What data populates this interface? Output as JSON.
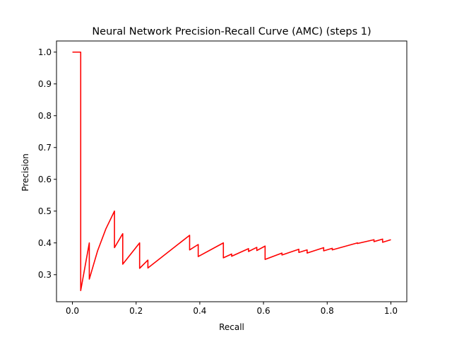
{
  "chart_data": {
    "type": "line",
    "title": "Neural Network Precision-Recall Curve (AMC) (steps 1)",
    "xlabel": "Recall",
    "ylabel": "Precision",
    "xlim": [
      -0.05,
      1.05
    ],
    "ylim": [
      0.215,
      1.035
    ],
    "xticks": [
      0.0,
      0.2,
      0.4,
      0.6,
      0.8,
      1.0
    ],
    "xtick_labels": [
      "0.0",
      "0.2",
      "0.4",
      "0.6",
      "0.8",
      "1.0"
    ],
    "yticks": [
      0.3,
      0.4,
      0.5,
      0.6,
      0.7,
      0.8,
      0.9,
      1.0
    ],
    "ytick_labels": [
      "0.3",
      "0.4",
      "0.5",
      "0.6",
      "0.7",
      "0.8",
      "0.9",
      "1.0"
    ],
    "grid": false,
    "series": [
      {
        "color": "#ff0000",
        "x": [
          0.0,
          0.026,
          0.026,
          0.026,
          0.053,
          0.053,
          0.079,
          0.105,
          0.132,
          0.132,
          0.158,
          0.158,
          0.211,
          0.211,
          0.237,
          0.237,
          0.368,
          0.368,
          0.395,
          0.395,
          0.474,
          0.474,
          0.5,
          0.5,
          0.553,
          0.553,
          0.579,
          0.579,
          0.605,
          0.605,
          0.658,
          0.658,
          0.711,
          0.711,
          0.737,
          0.737,
          0.789,
          0.789,
          0.816,
          0.816,
          0.895,
          0.895,
          0.947,
          0.947,
          0.974,
          0.974,
          1.0
        ],
        "y": [
          1.0,
          1.0,
          0.5,
          0.25,
          0.4,
          0.286,
          0.375,
          0.444,
          0.5,
          0.385,
          0.429,
          0.333,
          0.4,
          0.32,
          0.346,
          0.321,
          0.424,
          0.378,
          0.395,
          0.357,
          0.4,
          0.353,
          0.365,
          0.358,
          0.382,
          0.373,
          0.386,
          0.376,
          0.39,
          0.348,
          0.368,
          0.362,
          0.38,
          0.37,
          0.378,
          0.368,
          0.385,
          0.375,
          0.383,
          0.378,
          0.4,
          0.398,
          0.41,
          0.404,
          0.412,
          0.402,
          0.41
        ]
      }
    ]
  }
}
